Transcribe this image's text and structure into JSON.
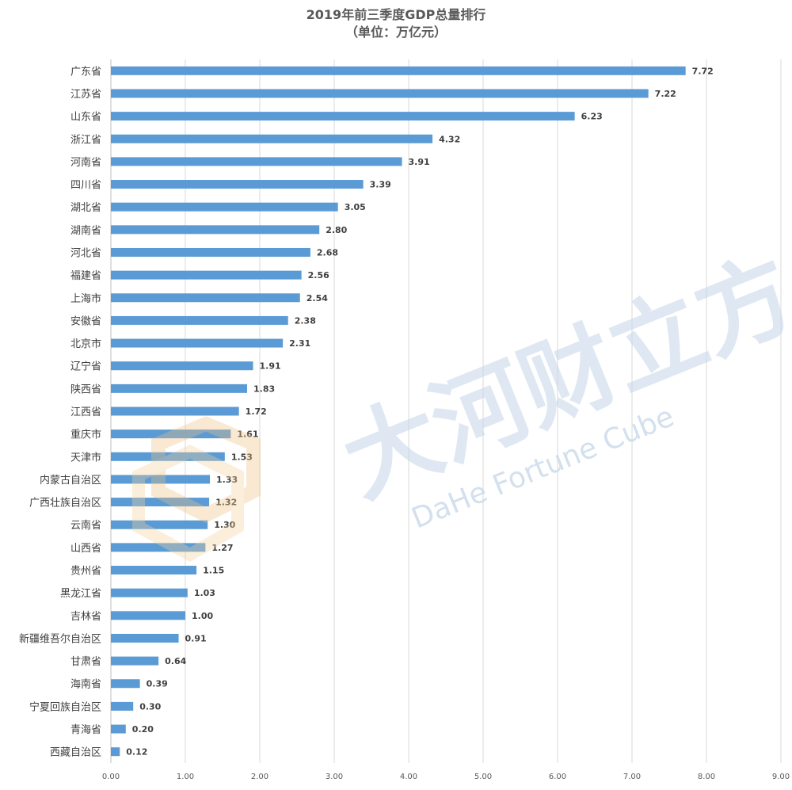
{
  "chart_data": {
    "type": "bar",
    "orientation": "horizontal",
    "title": "2019年前三季度GDP总量排行",
    "subtitle": "（单位：万亿元）",
    "categories": [
      "广东省",
      "江苏省",
      "山东省",
      "浙江省",
      "河南省",
      "四川省",
      "湖北省",
      "湖南省",
      "河北省",
      "福建省",
      "上海市",
      "安徽省",
      "北京市",
      "辽宁省",
      "陕西省",
      "江西省",
      "重庆市",
      "天津市",
      "内蒙古自治区",
      "广西壮族自治区",
      "云南省",
      "山西省",
      "贵州省",
      "黑龙江省",
      "吉林省",
      "新疆维吾尔自治区",
      "甘肃省",
      "海南省",
      "宁夏回族自治区",
      "青海省",
      "西藏自治区"
    ],
    "values": [
      7.72,
      7.22,
      6.23,
      4.32,
      3.91,
      3.39,
      3.05,
      2.8,
      2.68,
      2.56,
      2.54,
      2.38,
      2.31,
      1.91,
      1.83,
      1.72,
      1.61,
      1.53,
      1.33,
      1.32,
      1.3,
      1.27,
      1.15,
      1.03,
      1.0,
      0.91,
      0.64,
      0.39,
      0.3,
      0.2,
      0.12
    ],
    "value_labels": [
      "7.72",
      "7.22",
      "6.23",
      "4.32",
      "3.91",
      "3.39",
      "3.05",
      "2.80",
      "2.68",
      "2.56",
      "2.54",
      "2.38",
      "2.31",
      "1.91",
      "1.83",
      "1.72",
      "1.61",
      "1.53",
      "1.33",
      "1.32",
      "1.30",
      "1.27",
      "1.15",
      "1.03",
      "1.00",
      "0.91",
      "0.64",
      "0.39",
      "0.30",
      "0.20",
      "0.12"
    ],
    "x_ticks": [
      "0.00",
      "1.00",
      "2.00",
      "3.00",
      "4.00",
      "5.00",
      "6.00",
      "7.00",
      "8.00",
      "9.00"
    ],
    "xlim": [
      0,
      9
    ],
    "grid": "vertical",
    "bar_color": "#5b9bd5",
    "grid_color": "#d9d9d9"
  },
  "watermark": {
    "calligraphy": "大河财立方",
    "text": "DaHe Fortune Cube",
    "color": "#c5d6e8"
  }
}
